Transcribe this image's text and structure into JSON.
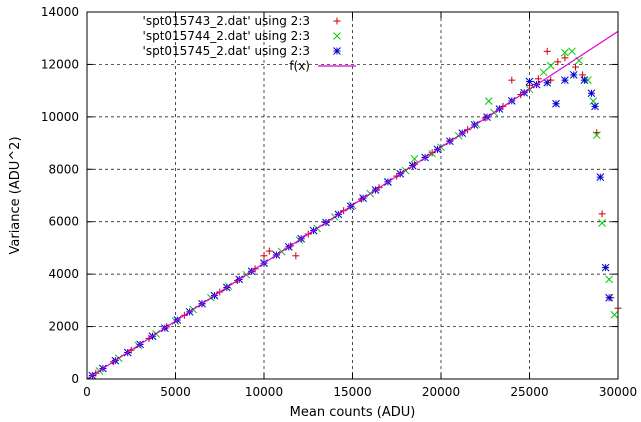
{
  "chart_data": {
    "type": "scatter",
    "title": "",
    "xlabel": "Mean counts (ADU)",
    "ylabel": "Variance (ADU^2)",
    "xlim": [
      0,
      30000
    ],
    "ylim": [
      0,
      14000
    ],
    "x_ticks": [
      0,
      5000,
      10000,
      15000,
      20000,
      25000,
      30000
    ],
    "y_ticks": [
      0,
      2000,
      4000,
      6000,
      8000,
      10000,
      12000,
      14000
    ],
    "x_tick_labels": [
      "0",
      "5000",
      "10000",
      "15000",
      "20000",
      "25000",
      "30000"
    ],
    "y_tick_labels": [
      "0",
      "2000",
      "4000",
      "6000",
      "8000",
      "10000",
      "12000",
      "14000"
    ],
    "grid": true,
    "grid_style": "dashed",
    "legend_position": "top-left",
    "series": [
      {
        "name": "'spt015743_2.dat' using 2:3",
        "marker": "plus",
        "color": "#cc0000",
        "points": [
          [
            500,
            220
          ],
          [
            1500,
            660
          ],
          [
            2500,
            1100
          ],
          [
            3500,
            1550
          ],
          [
            4500,
            1990
          ],
          [
            5500,
            2430
          ],
          [
            6500,
            2870
          ],
          [
            7500,
            3320
          ],
          [
            8500,
            3760
          ],
          [
            9500,
            4200
          ],
          [
            10000,
            4700
          ],
          [
            10300,
            4880
          ],
          [
            11500,
            5080
          ],
          [
            11800,
            4700
          ],
          [
            12500,
            5530
          ],
          [
            13500,
            5970
          ],
          [
            14500,
            6420
          ],
          [
            15500,
            6860
          ],
          [
            16500,
            7300
          ],
          [
            17500,
            7740
          ],
          [
            18500,
            8190
          ],
          [
            19500,
            8630
          ],
          [
            20500,
            9080
          ],
          [
            21500,
            9510
          ],
          [
            22500,
            9960
          ],
          [
            23500,
            10400
          ],
          [
            24000,
            11400
          ],
          [
            24500,
            10850
          ],
          [
            25000,
            11200
          ],
          [
            25500,
            11450
          ],
          [
            26000,
            12500
          ],
          [
            26200,
            11400
          ],
          [
            26600,
            12100
          ],
          [
            27000,
            12250
          ],
          [
            27600,
            11900
          ],
          [
            28000,
            11600
          ],
          [
            28800,
            9400
          ],
          [
            29100,
            6300
          ],
          [
            29600,
            3100
          ],
          [
            30000,
            2700
          ]
        ]
      },
      {
        "name": "'spt015744_2.dat' using 2:3",
        "marker": "cross",
        "color": "#00cc00",
        "points": [
          [
            700,
            310
          ],
          [
            1800,
            790
          ],
          [
            2900,
            1280
          ],
          [
            3900,
            1720
          ],
          [
            5000,
            2210
          ],
          [
            6000,
            2650
          ],
          [
            7000,
            3100
          ],
          [
            8000,
            3540
          ],
          [
            9000,
            3980
          ],
          [
            10000,
            4420
          ],
          [
            11000,
            4860
          ],
          [
            12000,
            5300
          ],
          [
            13000,
            5740
          ],
          [
            14000,
            6180
          ],
          [
            15000,
            6620
          ],
          [
            16000,
            7070
          ],
          [
            17000,
            7510
          ],
          [
            18000,
            7950
          ],
          [
            18500,
            8400
          ],
          [
            19500,
            8600
          ],
          [
            20000,
            8840
          ],
          [
            21000,
            9280
          ],
          [
            22000,
            9720
          ],
          [
            22700,
            10600
          ],
          [
            23000,
            10160
          ],
          [
            24000,
            10610
          ],
          [
            25000,
            11050
          ],
          [
            25800,
            11700
          ],
          [
            26200,
            11950
          ],
          [
            27000,
            12450
          ],
          [
            27400,
            12500
          ],
          [
            27800,
            12150
          ],
          [
            28300,
            11400
          ],
          [
            28600,
            10600
          ],
          [
            28800,
            9300
          ],
          [
            29100,
            5950
          ],
          [
            29500,
            3800
          ],
          [
            29800,
            2450
          ]
        ]
      },
      {
        "name": "'spt015745_2.dat' using 2:3",
        "marker": "star",
        "color": "#0000cc",
        "points": [
          [
            300,
            130
          ],
          [
            900,
            400
          ],
          [
            1600,
            700
          ],
          [
            2300,
            1010
          ],
          [
            3000,
            1320
          ],
          [
            3700,
            1630
          ],
          [
            4400,
            1940
          ],
          [
            5100,
            2250
          ],
          [
            5800,
            2560
          ],
          [
            6500,
            2870
          ],
          [
            7200,
            3180
          ],
          [
            7900,
            3490
          ],
          [
            8600,
            3800
          ],
          [
            9300,
            4110
          ],
          [
            10000,
            4420
          ],
          [
            10700,
            4730
          ],
          [
            11400,
            5040
          ],
          [
            12100,
            5350
          ],
          [
            12800,
            5660
          ],
          [
            13500,
            5970
          ],
          [
            14200,
            6280
          ],
          [
            14900,
            6590
          ],
          [
            15600,
            6900
          ],
          [
            16300,
            7210
          ],
          [
            17000,
            7520
          ],
          [
            17700,
            7830
          ],
          [
            18400,
            8140
          ],
          [
            19100,
            8450
          ],
          [
            19800,
            8760
          ],
          [
            20500,
            9070
          ],
          [
            21200,
            9380
          ],
          [
            21900,
            9690
          ],
          [
            22600,
            9990
          ],
          [
            23300,
            10300
          ],
          [
            24000,
            10610
          ],
          [
            24700,
            10920
          ],
          [
            25000,
            11350
          ],
          [
            25400,
            11230
          ],
          [
            26000,
            11300
          ],
          [
            26500,
            10500
          ],
          [
            27000,
            11400
          ],
          [
            27500,
            11600
          ],
          [
            28100,
            11400
          ],
          [
            28500,
            10900
          ],
          [
            28700,
            10400
          ],
          [
            29000,
            7700
          ],
          [
            29300,
            4250
          ],
          [
            29500,
            3100
          ]
        ]
      },
      {
        "name": "f(x)",
        "type": "line",
        "color": "#dd00dd",
        "points": [
          [
            0,
            0
          ],
          [
            30000,
            13260
          ]
        ]
      }
    ]
  }
}
